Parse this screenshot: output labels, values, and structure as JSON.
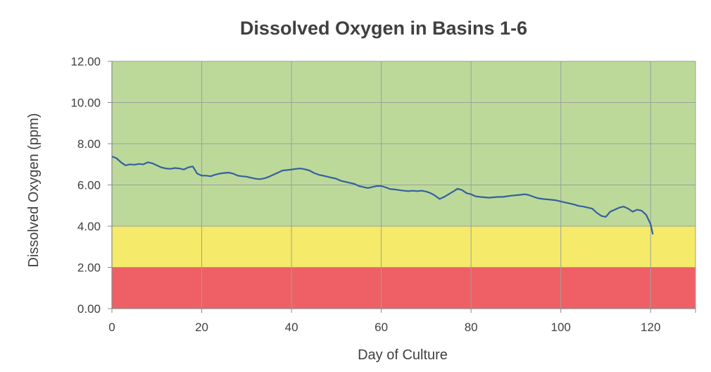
{
  "chart_data": {
    "type": "line",
    "title": "Dissolved Oxygen in Basins 1-6",
    "xlabel": "Day of Culture",
    "ylabel": "Dissolved Oxygen (ppm)",
    "xlim": [
      0,
      130
    ],
    "ylim": [
      0,
      12
    ],
    "x_ticks": [
      0,
      20,
      40,
      60,
      80,
      100,
      120
    ],
    "x_tick_labels": [
      "0",
      "20",
      "40",
      "60",
      "80",
      "100",
      "120"
    ],
    "y_ticks": [
      0,
      2,
      4,
      6,
      8,
      10,
      12
    ],
    "y_tick_labels": [
      "0.00",
      "2.00",
      "4.00",
      "6.00",
      "8.00",
      "10.00",
      "12.00"
    ],
    "grid": true,
    "legend": "none",
    "bands": [
      {
        "from": 0,
        "to": 2,
        "color": "#ee6065"
      },
      {
        "from": 2,
        "to": 4,
        "color": "#f5ea6a"
      },
      {
        "from": 4,
        "to": 12,
        "color": "#bcd99a"
      }
    ],
    "line_color": "#34609e",
    "series": [
      {
        "x": [
          0,
          1,
          2,
          3,
          4,
          5,
          6,
          7,
          8,
          9,
          10,
          11,
          12,
          13,
          14,
          15,
          16,
          17,
          18,
          19,
          20,
          21,
          22,
          23,
          24,
          25,
          26,
          27,
          28,
          29,
          30,
          31,
          32,
          33,
          34,
          35,
          36,
          37,
          38,
          39,
          40,
          41,
          42,
          43,
          44,
          45,
          46,
          47,
          48,
          49,
          50,
          51,
          52,
          53,
          54,
          55,
          56,
          57,
          58,
          59,
          60,
          61,
          62,
          63,
          64,
          65,
          66,
          67,
          68,
          69,
          70,
          71,
          72,
          73,
          74,
          75,
          76,
          77,
          78,
          79,
          80,
          81,
          82,
          83,
          84,
          85,
          86,
          87,
          88,
          89,
          90,
          91,
          92,
          93,
          94,
          95,
          96,
          97,
          98,
          99,
          100,
          101,
          102,
          103,
          104,
          105,
          106,
          107,
          108,
          109,
          110,
          111,
          112,
          113,
          114,
          115,
          116,
          117,
          118,
          119,
          120,
          120.5
        ],
        "values": [
          7.38,
          7.3,
          7.1,
          6.95,
          7.0,
          6.98,
          7.02,
          7.0,
          7.1,
          7.05,
          6.95,
          6.85,
          6.8,
          6.78,
          6.82,
          6.8,
          6.75,
          6.85,
          6.9,
          6.55,
          6.45,
          6.45,
          6.42,
          6.5,
          6.55,
          6.58,
          6.6,
          6.55,
          6.45,
          6.42,
          6.4,
          6.35,
          6.3,
          6.28,
          6.32,
          6.4,
          6.5,
          6.6,
          6.7,
          6.72,
          6.75,
          6.78,
          6.8,
          6.76,
          6.7,
          6.58,
          6.5,
          6.45,
          6.4,
          6.35,
          6.3,
          6.2,
          6.15,
          6.1,
          6.05,
          5.95,
          5.9,
          5.85,
          5.9,
          5.95,
          5.95,
          5.88,
          5.8,
          5.78,
          5.75,
          5.72,
          5.7,
          5.72,
          5.7,
          5.72,
          5.68,
          5.6,
          5.48,
          5.32,
          5.42,
          5.55,
          5.68,
          5.82,
          5.75,
          5.6,
          5.55,
          5.45,
          5.42,
          5.4,
          5.38,
          5.4,
          5.42,
          5.42,
          5.45,
          5.48,
          5.5,
          5.52,
          5.55,
          5.5,
          5.42,
          5.35,
          5.32,
          5.3,
          5.28,
          5.25,
          5.2,
          5.15,
          5.1,
          5.05,
          4.98,
          4.95,
          4.9,
          4.85,
          4.65,
          4.5,
          4.45,
          4.7,
          4.8,
          4.9,
          4.95,
          4.85,
          4.7,
          4.8,
          4.75,
          4.55,
          4.1,
          3.6
        ]
      }
    ]
  }
}
